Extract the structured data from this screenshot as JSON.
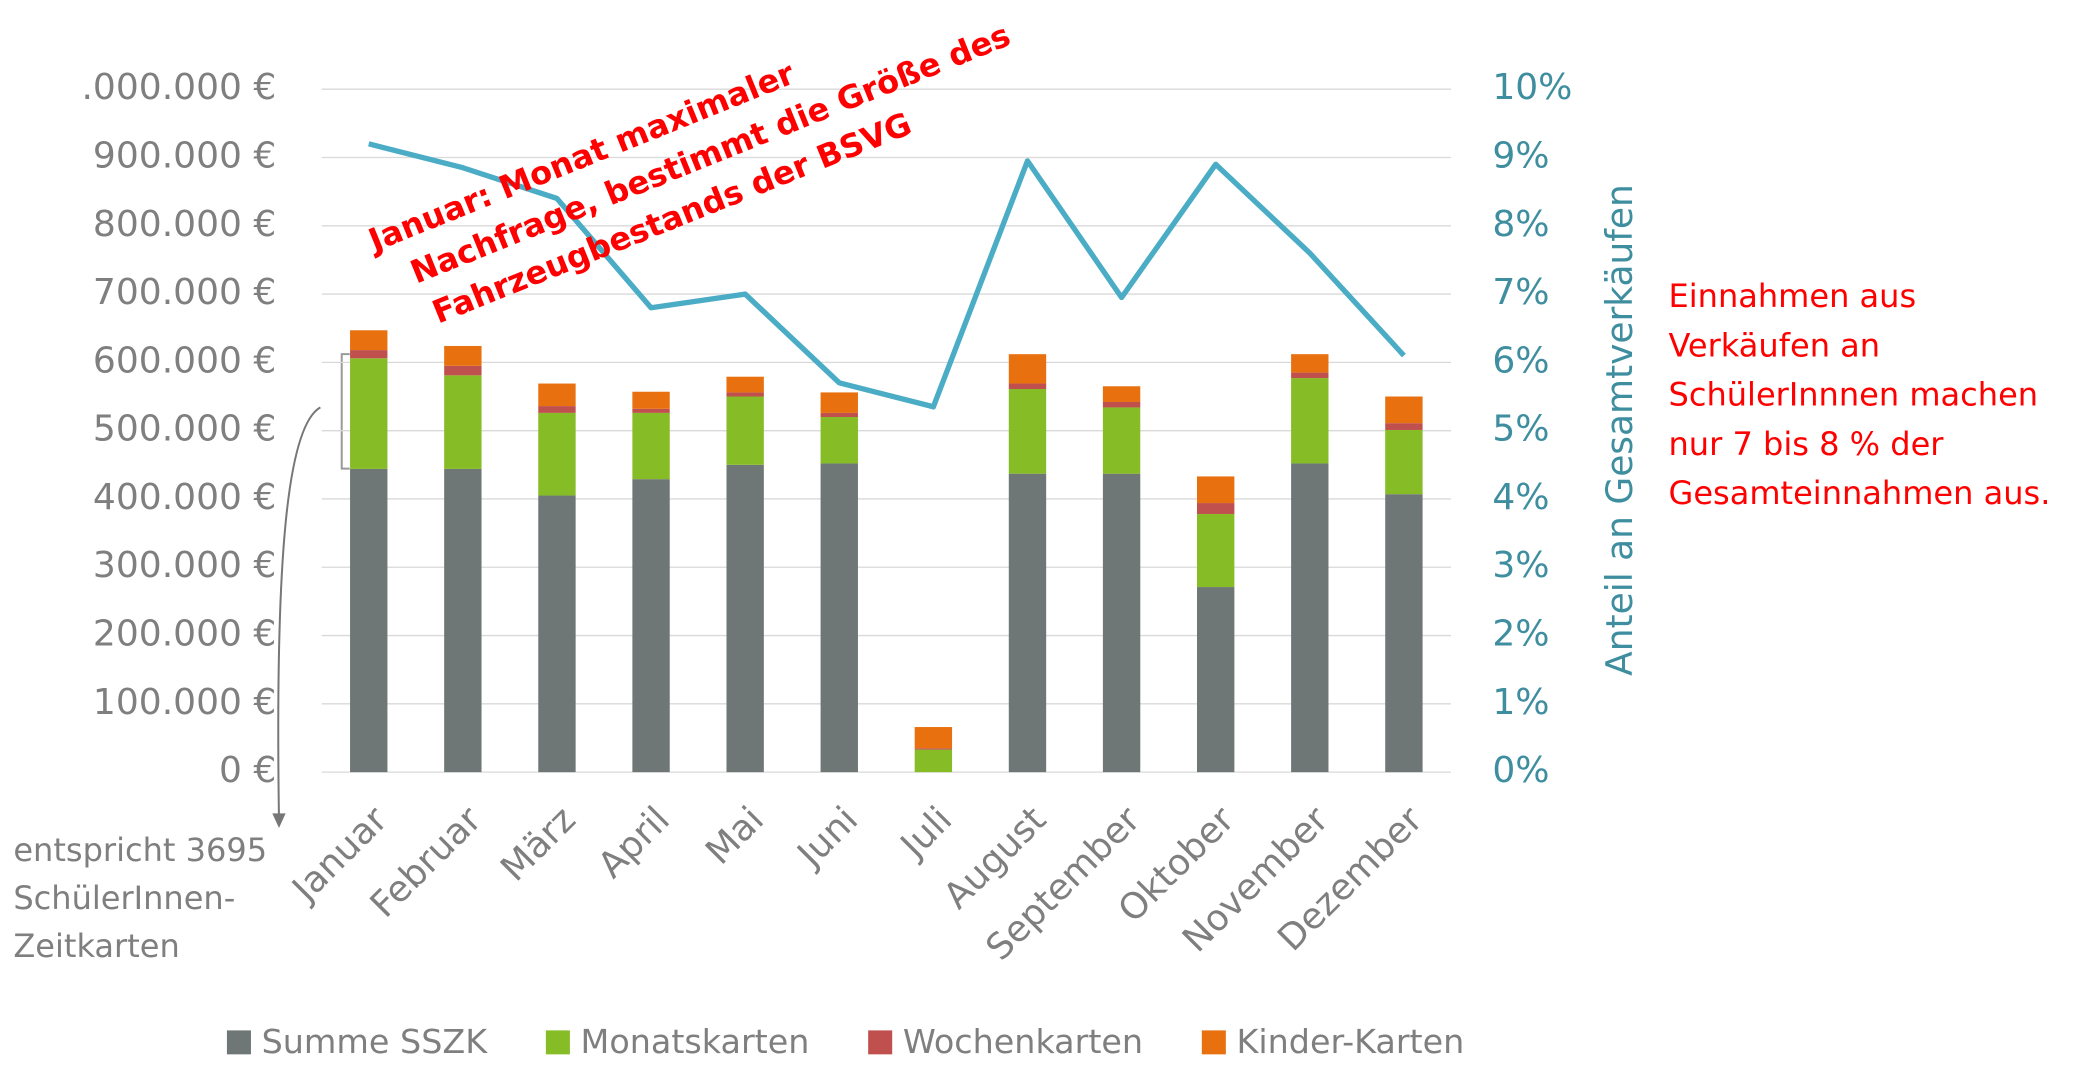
{
  "chart_data": {
    "type": "bar",
    "categories": [
      "Januar",
      "Februar",
      "März",
      "April",
      "Mai",
      "Juni",
      "Juli",
      "August",
      "September",
      "Oktober",
      "November",
      "Dezember"
    ],
    "series": [
      {
        "name": "Summe SSZK",
        "color": "#6f7776",
        "values": [
          444000,
          444000,
          405000,
          429000,
          450000,
          452000,
          0,
          437000,
          437000,
          271000,
          452000,
          407000
        ]
      },
      {
        "name": "Monatskarten",
        "color": "#86bc25",
        "values": [
          162000,
          137000,
          121000,
          97000,
          100000,
          68000,
          33000,
          124000,
          97000,
          107000,
          125000,
          94000
        ]
      },
      {
        "name": "Wochenkarten",
        "color": "#c0504d",
        "values": [
          12000,
          14000,
          10000,
          6000,
          6000,
          6000,
          2000,
          8000,
          8000,
          16000,
          8000,
          10000
        ]
      },
      {
        "name": "Kinder-Karten",
        "color": "#e8700f",
        "values": [
          29000,
          29000,
          33000,
          25000,
          23000,
          30000,
          31000,
          43000,
          23000,
          39000,
          27000,
          39000
        ]
      },
      {
        "type": "line",
        "axis": "y2",
        "color": "#4bacc6",
        "values": [
          9.2,
          8.85,
          8.4,
          6.8,
          7.0,
          5.7,
          5.35,
          8.95,
          6.95,
          8.9,
          7.6,
          6.1
        ]
      }
    ],
    "ylim": [
      0,
      1000000
    ],
    "yticks": [
      {
        "value": 0,
        "label": "0 €"
      },
      {
        "value": 100000,
        "label": "100.000 €"
      },
      {
        "value": 200000,
        "label": "200.000 €"
      },
      {
        "value": 300000,
        "label": "300.000 €"
      },
      {
        "value": 400000,
        "label": "400.000 €"
      },
      {
        "value": 500000,
        "label": "500.000 €"
      },
      {
        "value": 600000,
        "label": "600.000 €"
      },
      {
        "value": 700000,
        "label": "700.000 €"
      },
      {
        "value": 800000,
        "label": "800.000 €"
      },
      {
        "value": 900000,
        "label": "900.000 €"
      },
      {
        "value": 1000000,
        "label": ".000.000 €"
      }
    ],
    "y2lim": [
      0,
      10
    ],
    "y2ticks": [
      {
        "value": 0,
        "label": "0%"
      },
      {
        "value": 1,
        "label": "1%"
      },
      {
        "value": 2,
        "label": "2%"
      },
      {
        "value": 3,
        "label": "3%"
      },
      {
        "value": 4,
        "label": "4%"
      },
      {
        "value": 5,
        "label": "5%"
      },
      {
        "value": 6,
        "label": "6%"
      },
      {
        "value": 7,
        "label": "7%"
      },
      {
        "value": 8,
        "label": "8%"
      },
      {
        "value": 9,
        "label": "9%"
      },
      {
        "value": 10,
        "label": "10%"
      }
    ],
    "y2label": "Anteil an Gesamtverkäufen",
    "grid": true,
    "legend": "bottom",
    "annotations": [
      [
        "Januar: Monat maximaler",
        "Nachfrage, bestimmt die Größe des",
        "Fahrzeugbestands der BSVG"
      ],
      [
        "Einnahmen aus",
        "Verkäufen an",
        "SchülerInnnen machen",
        "nur 7 bis 8 % der",
        "Gesamteinnahmen aus."
      ],
      [
        "entspricht 3695",
        "SchülerInnen-",
        "Zeitkarten"
      ]
    ]
  }
}
